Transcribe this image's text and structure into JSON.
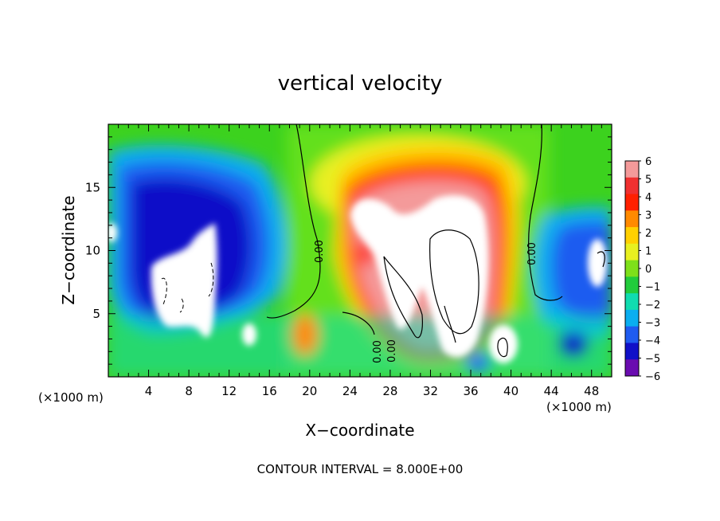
{
  "chart_data": {
    "type": "heatmap",
    "title": "vertical velocity",
    "xlabel": "X−coordinate",
    "ylabel": "Z−coordinate",
    "x_units_left": "(×1000 m)",
    "x_units_right": "(×1000 m)",
    "xlim": [
      0,
      50
    ],
    "ylim": [
      0,
      20
    ],
    "x_ticks": [
      4,
      8,
      12,
      16,
      20,
      24,
      28,
      32,
      36,
      40,
      44,
      48
    ],
    "y_ticks": [
      5,
      10,
      15
    ],
    "colorbar": {
      "min": -6,
      "max": 6,
      "labels": [
        "6",
        "5",
        "4",
        "3",
        "2",
        "1",
        "0",
        "−1",
        "−2",
        "−3",
        "−4",
        "−5",
        "−6"
      ],
      "colors": [
        "#f49a9a",
        "#f03030",
        "#ff2000",
        "#ff8a00",
        "#ffd000",
        "#e8f020",
        "#7ee01a",
        "#22cc3c",
        "#10dcb0",
        "#0aaef0",
        "#1f5cf0",
        "#1010c8",
        "#6a0cb0"
      ]
    },
    "contour_interval": "CONTOUR INTERVAL = 8.000E+00",
    "contour_labels": [
      "0.00",
      "0.00",
      "0.00",
      "0.00"
    ],
    "field_features": [
      {
        "x": 34,
        "z": 8,
        "value": 12,
        "kind": "updraft-core"
      },
      {
        "x": 29,
        "z": 11,
        "value": 9,
        "kind": "updraft"
      },
      {
        "x": 26.5,
        "z": 6,
        "value": 8,
        "kind": "updraft"
      },
      {
        "x": 38.5,
        "z": 2.5,
        "value": 9,
        "kind": "updraft"
      },
      {
        "x": 7.5,
        "z": 7,
        "value": -11,
        "kind": "downdraft-core"
      },
      {
        "x": 10.5,
        "z": 9.5,
        "value": -9,
        "kind": "downdraft"
      },
      {
        "x": 5,
        "z": 14,
        "value": -5,
        "kind": "downdraft"
      },
      {
        "x": 46.5,
        "z": 13,
        "value": -5,
        "kind": "downdraft"
      },
      {
        "x": 48.5,
        "z": 10,
        "value": -9,
        "kind": "downdraft"
      },
      {
        "x": 0.5,
        "z": 11.5,
        "value": -8,
        "kind": "downdraft"
      }
    ]
  }
}
